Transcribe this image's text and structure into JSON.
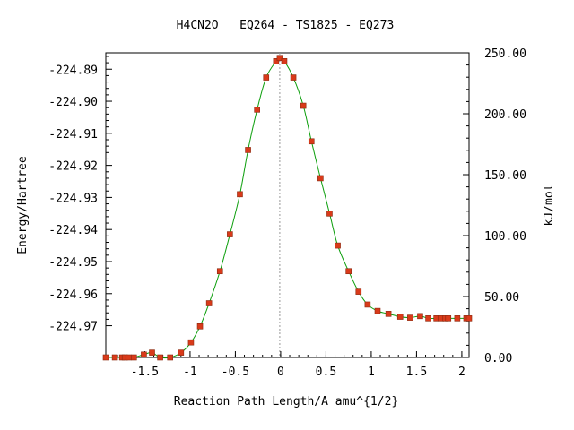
{
  "chart_data": {
    "type": "line",
    "title": "H4CN2O   EQ264 - TS1825 - EQ273",
    "xlabel": "Reaction Path Length/A amu^{1/2}",
    "ylabel": "Energy/Hartree",
    "y2label": "kJ/mol",
    "xlim": [
      -1.93,
      2.08
    ],
    "ylim": [
      -224.9799,
      -224.8849
    ],
    "y2lim": [
      0,
      250
    ],
    "xticks": [
      -1.5,
      -1,
      -0.5,
      0,
      0.5,
      1,
      1.5,
      2
    ],
    "xtick_labels": [
      "-1.5",
      "-1",
      "-0.5",
      "0",
      "0.5",
      "1",
      "1.5",
      "2"
    ],
    "yticks": [
      -224.89,
      -224.9,
      -224.91,
      -224.92,
      -224.93,
      -224.94,
      -224.95,
      -224.96,
      -224.97
    ],
    "ytick_labels": [
      "-224.89",
      "-224.90",
      "-224.91",
      "-224.92",
      "-224.93",
      "-224.94",
      "-224.95",
      "-224.96",
      "-224.97"
    ],
    "y2ticks": [
      0,
      50,
      100,
      150,
      200,
      250
    ],
    "y2tick_labels": [
      "0.00",
      "50.00",
      "100.00",
      "150.00",
      "200.00",
      "250.00"
    ],
    "ts_marker_x": -0.01,
    "grid": false,
    "series": [
      {
        "x": [
          -1.93,
          -1.83,
          -1.75,
          -1.72,
          -1.68,
          -1.62,
          -1.51,
          -1.42,
          -1.33,
          -1.22,
          -1.1,
          -0.99,
          -0.89,
          -0.79,
          -0.67,
          -0.56,
          -0.45,
          -0.36,
          -0.26,
          -0.16,
          -0.05,
          -0.01,
          0.04,
          0.14,
          0.25,
          0.34,
          0.44,
          0.54,
          0.63,
          0.75,
          0.86,
          0.96,
          1.07,
          1.19,
          1.32,
          1.43,
          1.54,
          1.63,
          1.72,
          1.77,
          1.82,
          1.85,
          1.95,
          2.05,
          2.08
        ],
        "y": [
          -224.9799,
          -224.9799,
          -224.9799,
          -224.9799,
          -224.9799,
          -224.9799,
          -224.979,
          -224.9784,
          -224.9799,
          -224.9799,
          -224.9784,
          -224.9752,
          -224.9702,
          -224.963,
          -224.953,
          -224.9415,
          -224.929,
          -224.9152,
          -224.9026,
          -224.8926,
          -224.8875,
          -224.8865,
          -224.8875,
          -224.8926,
          -224.9014,
          -224.9125,
          -224.924,
          -224.935,
          -224.945,
          -224.953,
          -224.9594,
          -224.9634,
          -224.9654,
          -224.9663,
          -224.9672,
          -224.9675,
          -224.967,
          -224.9677,
          -224.9677,
          -224.9677,
          -224.9677,
          -224.9677,
          -224.9677,
          -224.9677,
          -224.9677
        ]
      }
    ],
    "line_color": "#0b9e0b",
    "marker_color": "#d93a1a",
    "marker_edge": "#8a2a10",
    "ts_line_color": "#999999"
  }
}
